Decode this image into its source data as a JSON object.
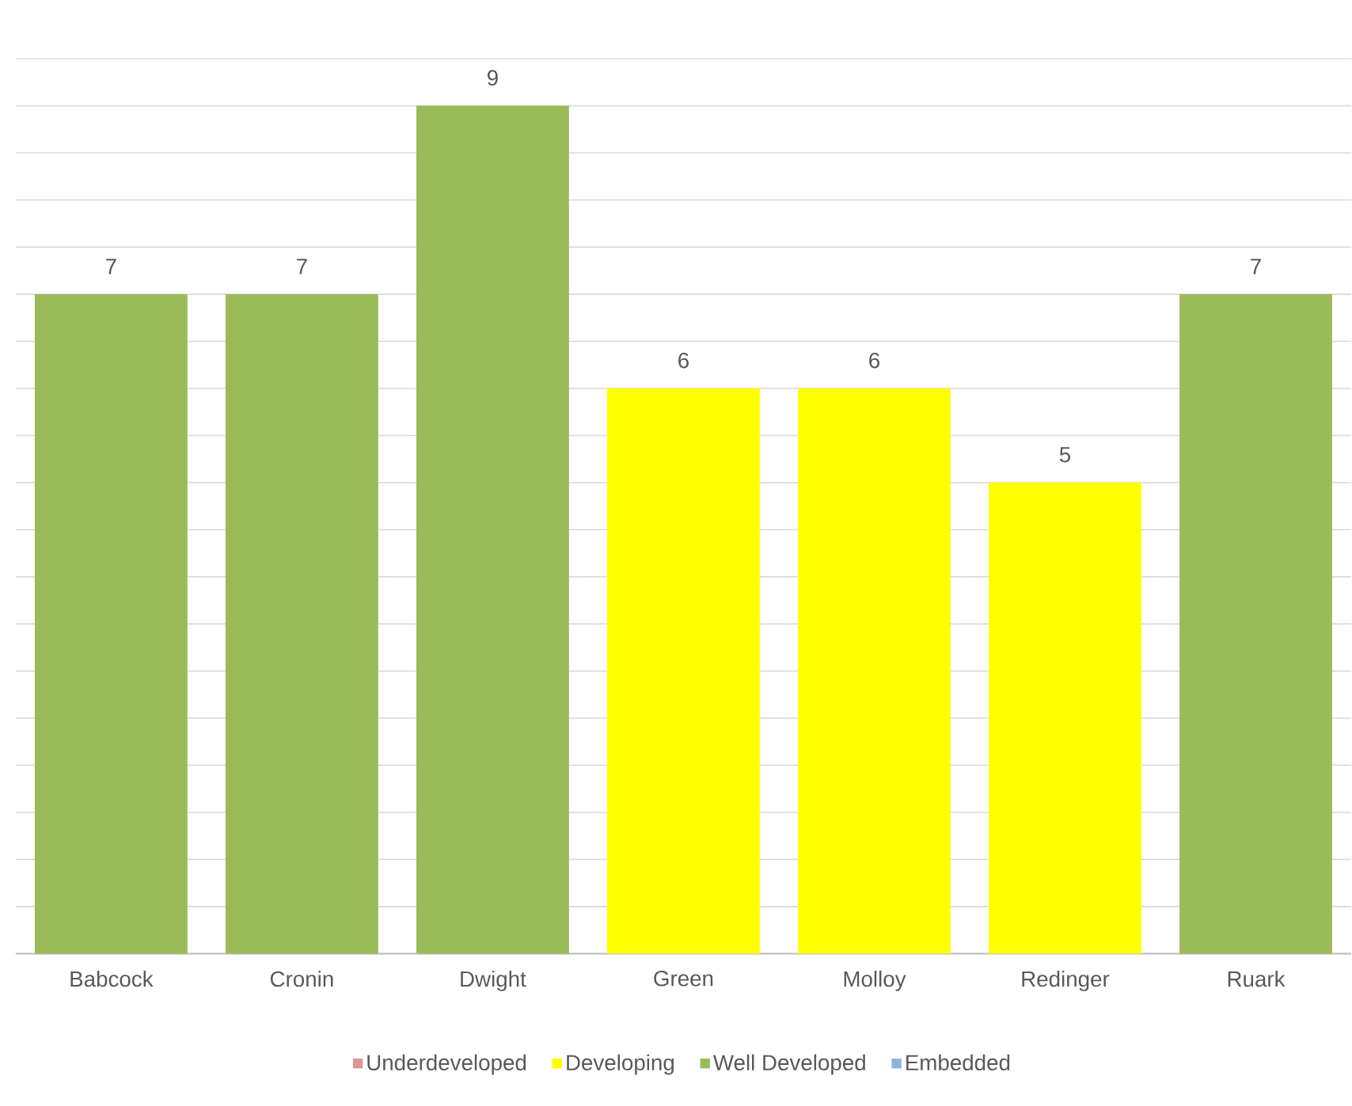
{
  "chart_data": {
    "type": "bar",
    "categories": [
      "Babcock",
      "Cronin",
      "Dwight",
      "Green",
      "Molloy",
      "Redinger",
      "Ruark"
    ],
    "series": [
      {
        "name": "Underdeveloped",
        "color": "#d99694",
        "values": [
          null,
          null,
          null,
          null,
          null,
          null,
          null
        ]
      },
      {
        "name": "Developing",
        "color": "#ffff00",
        "values": [
          null,
          null,
          null,
          6,
          6,
          5,
          null
        ]
      },
      {
        "name": "Well Developed",
        "color": "#9bbb59",
        "values": [
          7,
          7,
          9,
          null,
          null,
          null,
          7
        ]
      },
      {
        "name": "Embedded",
        "color": "#8db3e2",
        "values": [
          null,
          null,
          null,
          null,
          null,
          null,
          null
        ]
      }
    ],
    "tick_labels": "x",
    "grid": "y",
    "legend": "bottom",
    "data_labels": true
  }
}
